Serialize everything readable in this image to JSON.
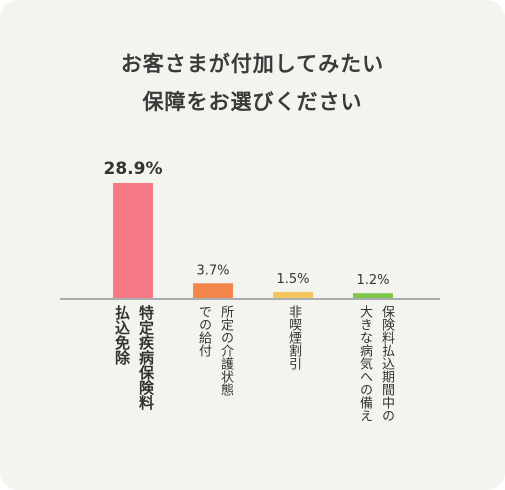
{
  "chart_data": {
    "type": "bar",
    "title_lines": [
      "お客さまが付加してみたい",
      "保障をお選びください"
    ],
    "unit": "%",
    "ylim": [
      0,
      28.9
    ],
    "grid": false,
    "categories": [
      {
        "label_lines": [
          "特定疾病保険料",
          "払込免除"
        ],
        "value": 28.9,
        "value_label": "28.9%",
        "color": "#f67a86"
      },
      {
        "label_lines": [
          "所定の介護状態",
          "での給付"
        ],
        "value": 3.7,
        "value_label": "3.7%",
        "color": "#f3864a"
      },
      {
        "label_lines": [
          "非喫煙割引"
        ],
        "value": 1.5,
        "value_label": "1.5%",
        "color": "#f4c55c"
      },
      {
        "label_lines": [
          "保険料払込期間中の",
          "大きな病気への備え"
        ],
        "value": 1.2,
        "value_label": "1.2%",
        "color": "#7ec64a"
      }
    ]
  }
}
